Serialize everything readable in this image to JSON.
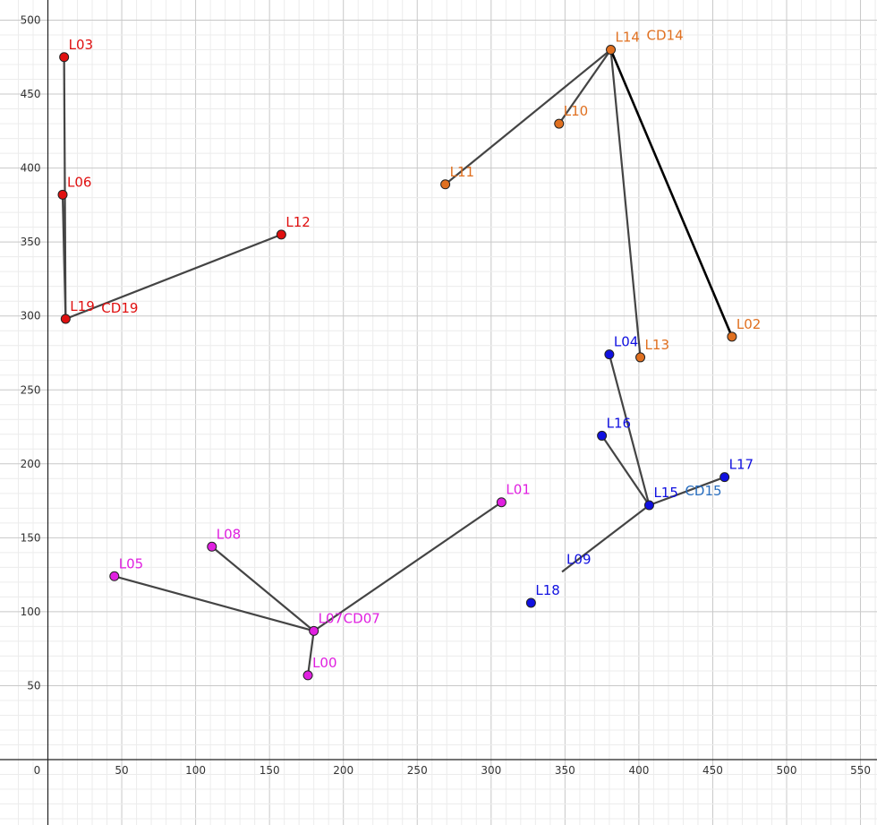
{
  "chart_data": {
    "type": "scatter",
    "title": "",
    "xlabel": "",
    "ylabel": "",
    "xlim": [
      -25,
      570
    ],
    "ylim": [
      -45,
      505
    ],
    "grid": true,
    "x_ticks": [
      0,
      50,
      100,
      150,
      200,
      250,
      300,
      350,
      400,
      450,
      500,
      550
    ],
    "y_ticks": [
      50,
      100,
      150,
      200,
      250,
      300,
      350,
      400,
      450,
      500
    ],
    "colors": {
      "red": "#e01010",
      "orange": "#e07020",
      "blue": "#1010e0",
      "magenta": "#e020e0",
      "edge": "#444444",
      "grid_major": "#c8c8c8",
      "grid_minor": "#ececec"
    },
    "points": [
      {
        "label": "L00",
        "x": 176,
        "y": 57,
        "group": "magenta"
      },
      {
        "label": "L01",
        "x": 307,
        "y": 174,
        "group": "magenta"
      },
      {
        "label": "L02",
        "x": 463,
        "y": 286,
        "group": "orange"
      },
      {
        "label": "L03",
        "x": 11,
        "y": 475,
        "group": "red"
      },
      {
        "label": "L04",
        "x": 380,
        "y": 274,
        "group": "blue"
      },
      {
        "label": "L05",
        "x": 45,
        "y": 124,
        "group": "magenta"
      },
      {
        "label": "L06",
        "x": 10,
        "y": 382,
        "group": "red"
      },
      {
        "label": "L07",
        "x": 180,
        "y": 87,
        "group": "magenta"
      },
      {
        "label": "L08",
        "x": 111,
        "y": 144,
        "group": "magenta"
      },
      {
        "label": "L09",
        "x": 348,
        "y": 127,
        "group": "blue",
        "hidden": true
      },
      {
        "label": "L10",
        "x": 346,
        "y": 430,
        "group": "orange"
      },
      {
        "label": "L11",
        "x": 269,
        "y": 389,
        "group": "orange"
      },
      {
        "label": "L12",
        "x": 158,
        "y": 355,
        "group": "red"
      },
      {
        "label": "L13",
        "x": 401,
        "y": 272,
        "group": "orange"
      },
      {
        "label": "L14",
        "x": 381,
        "y": 480,
        "group": "orange"
      },
      {
        "label": "L15",
        "x": 407,
        "y": 172,
        "group": "blue"
      },
      {
        "label": "L16",
        "x": 375,
        "y": 219,
        "group": "blue"
      },
      {
        "label": "L17",
        "x": 458,
        "y": 191,
        "group": "blue"
      },
      {
        "label": "L18",
        "x": 327,
        "y": 106,
        "group": "blue"
      },
      {
        "label": "L19",
        "x": 12,
        "y": 298,
        "group": "red"
      }
    ],
    "edges": [
      {
        "from": "L19",
        "to": "L03"
      },
      {
        "from": "L19",
        "to": "L06"
      },
      {
        "from": "L19",
        "to": "L12"
      },
      {
        "from": "L14",
        "to": "L11"
      },
      {
        "from": "L14",
        "to": "L10"
      },
      {
        "from": "L14",
        "to": "L13"
      },
      {
        "from": "L14",
        "to": "L02",
        "bold": true
      },
      {
        "from": "L15",
        "to": "L04"
      },
      {
        "from": "L15",
        "to": "L16"
      },
      {
        "from": "L15",
        "to": "L17"
      },
      {
        "from": "L15",
        "to": "L09"
      },
      {
        "from": "L07",
        "to": "L05"
      },
      {
        "from": "L07",
        "to": "L08"
      },
      {
        "from": "L07",
        "to": "L00"
      },
      {
        "from": "L07",
        "to": "L01"
      }
    ],
    "centers": [
      {
        "point": "L19",
        "label": "CD19"
      },
      {
        "point": "L14",
        "label": "CD14"
      },
      {
        "point": "L15",
        "label": "CD15"
      },
      {
        "point": "L07",
        "label": "CD07"
      }
    ]
  }
}
